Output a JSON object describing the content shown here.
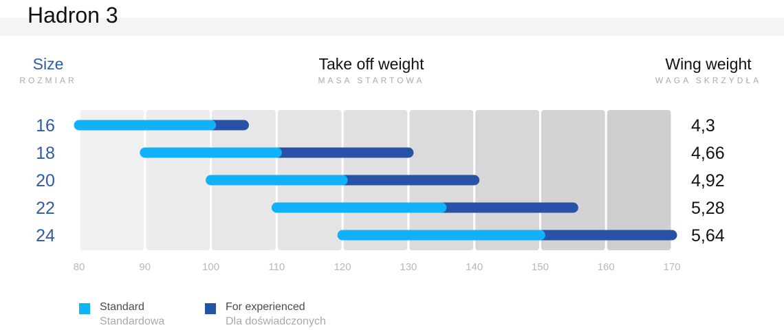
{
  "title": "Hadron 3",
  "headers": {
    "size": {
      "main": "Size",
      "sub": "ROZMIAR"
    },
    "takeoff": {
      "main": "Take off weight",
      "sub": "MASA STARTOWA"
    },
    "wing": {
      "main": "Wing weight",
      "sub": "WAGA SKRZYDŁA"
    }
  },
  "legend": {
    "standard": {
      "label": "Standard",
      "label_pl": "Standardowa",
      "color": "#12b2f8"
    },
    "experienced": {
      "label": "For experienced",
      "label_pl": "Dla doświadczonych",
      "color": "#2752a8"
    }
  },
  "colors": {
    "size_label": "#2e5aa8",
    "wing_label": "#111111",
    "tick": "#b8b8b8",
    "band_light": "#f0f0f0",
    "band_dark": "#cfcfcf"
  },
  "chart_data": {
    "type": "bar",
    "orientation": "horizontal",
    "x_ticks": [
      80,
      90,
      100,
      110,
      120,
      130,
      140,
      150,
      160,
      170
    ],
    "xlim": [
      80,
      170
    ],
    "categories": [
      "16",
      "18",
      "20",
      "22",
      "24"
    ],
    "series": [
      {
        "name": "Standard",
        "ranges": [
          [
            80,
            100
          ],
          [
            90,
            110
          ],
          [
            100,
            120
          ],
          [
            110,
            135
          ],
          [
            120,
            150
          ]
        ]
      },
      {
        "name": "For experienced",
        "ranges": [
          [
            100,
            105
          ],
          [
            110,
            130
          ],
          [
            120,
            140
          ],
          [
            135,
            155
          ],
          [
            150,
            170
          ]
        ]
      }
    ],
    "wing_weight": [
      "4,3",
      "4,66",
      "4,92",
      "5,28",
      "5,64"
    ]
  }
}
